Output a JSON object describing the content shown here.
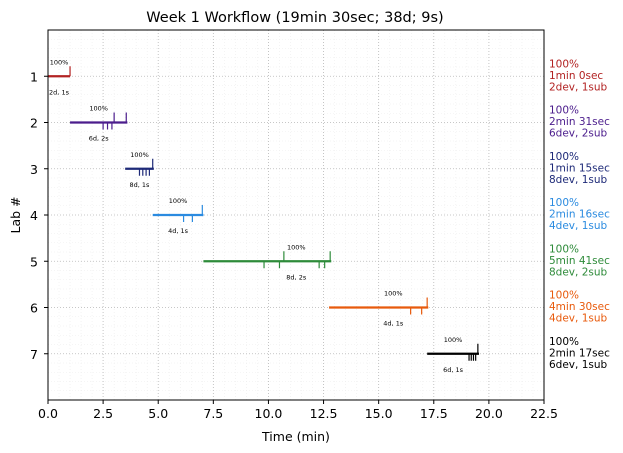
{
  "chart_data": {
    "type": "timeline",
    "title": "Week 1 Workflow (19min 30sec; 38d; 9s)",
    "xlabel": "Time (min)",
    "ylabel": "Lab #",
    "xlim": [
      0,
      22.5
    ],
    "ylim": [
      0,
      8
    ],
    "y_inverted": true,
    "grid": "major and minor, dotted",
    "x_ticks": [
      "0.0",
      "2.5",
      "5.0",
      "7.5",
      "10.0",
      "12.5",
      "15.0",
      "17.5",
      "20.0",
      "22.5"
    ],
    "y_ticks": [
      "1",
      "2",
      "3",
      "4",
      "5",
      "6",
      "7"
    ],
    "series": [
      {
        "lab": 1,
        "label": "1",
        "start": 0.0,
        "end": 1.0,
        "color": "#b22222",
        "dev_marks": [],
        "sub_marks": [
          1.0
        ],
        "pct": "100%",
        "counts": "2d, 1s",
        "summary": [
          "100%",
          "1min 0sec",
          "2dev, 1sub"
        ]
      },
      {
        "lab": 2,
        "label": "2",
        "start": 1.0,
        "end": 3.6,
        "color": "#4b1c8c",
        "dev_marks": [
          2.5,
          2.7,
          2.9
        ],
        "sub_marks": [
          3.0,
          3.55
        ],
        "pct": "100%",
        "counts": "6d, 2s",
        "summary": [
          "100%",
          "2min 31sec",
          "6dev, 2sub"
        ]
      },
      {
        "lab": 3,
        "label": "3",
        "start": 3.5,
        "end": 4.8,
        "color": "#1e2a78",
        "dev_marks": [
          4.15,
          4.3,
          4.45,
          4.6
        ],
        "sub_marks": [
          4.75
        ],
        "pct": "100%",
        "counts": "8d, 1s",
        "summary": [
          "100%",
          "1min 15sec",
          "8dev, 1sub"
        ]
      },
      {
        "lab": 4,
        "label": "4",
        "start": 4.75,
        "end": 7.05,
        "color": "#2b8be0",
        "dev_marks": [
          6.15,
          6.55
        ],
        "sub_marks": [
          7.0
        ],
        "pct": "100%",
        "counts": "4d, 1s",
        "summary": [
          "100%",
          "2min 16sec",
          "4dev, 1sub"
        ]
      },
      {
        "lab": 5,
        "label": "5",
        "start": 7.05,
        "end": 12.85,
        "color": "#2e8b3a",
        "dev_marks": [
          9.8,
          10.5,
          12.3,
          12.55
        ],
        "sub_marks": [
          10.7,
          12.8
        ],
        "pct": "100%",
        "counts": "8d, 2s",
        "summary": [
          "100%",
          "5min 41sec",
          "8dev, 2sub"
        ]
      },
      {
        "lab": 6,
        "label": "6",
        "start": 12.75,
        "end": 17.25,
        "color": "#e85a0c",
        "dev_marks": [
          16.45,
          16.95
        ],
        "sub_marks": [
          17.2
        ],
        "pct": "100%",
        "counts": "4d, 1s",
        "summary": [
          "100%",
          "4min 30sec",
          "4dev, 1sub"
        ]
      },
      {
        "lab": 7,
        "label": "7",
        "start": 17.2,
        "end": 19.55,
        "color": "#000000",
        "dev_marks": [
          19.1,
          19.2,
          19.3,
          19.4
        ],
        "sub_marks": [
          19.5
        ],
        "pct": "100%",
        "counts": "6d, 1s",
        "summary": [
          "100%",
          "2min 17sec",
          "6dev, 1sub"
        ]
      }
    ]
  }
}
